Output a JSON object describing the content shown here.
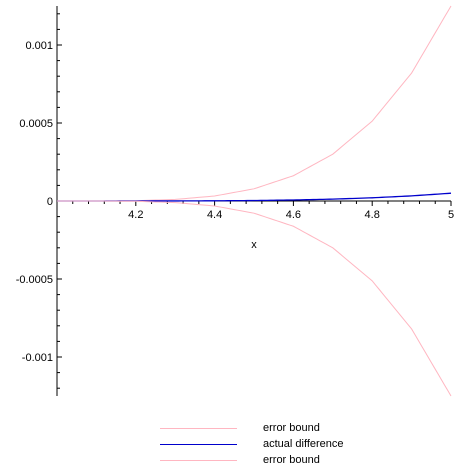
{
  "chart_data": {
    "type": "line",
    "title": "",
    "xlabel": "x",
    "ylabel": "",
    "xlim": [
      4.0,
      5.0
    ],
    "ylim": [
      -0.00125,
      0.00125
    ],
    "x_ticks": [
      4.2,
      4.4,
      4.6,
      4.8,
      5
    ],
    "x_tick_labels": [
      "4.2",
      "4.4",
      "4.6",
      "4.8",
      "5"
    ],
    "y_ticks": [
      0.001,
      0.0005,
      0,
      -0.0005,
      -0.001
    ],
    "y_tick_labels": [
      "0.001",
      "0.0005",
      "0",
      "-0.0005",
      "-0.001"
    ],
    "grid": false,
    "legend_position": "bottom",
    "series": [
      {
        "name": "error bound",
        "color": "#ffb6c1",
        "x": [
          4.0,
          4.1,
          4.2,
          4.3,
          4.4,
          4.5,
          4.6,
          4.7,
          4.8,
          4.9,
          5.0
        ],
        "y": [
          0,
          1e-07,
          2e-06,
          1.01e-05,
          3.2e-05,
          7.81e-05,
          0.000162,
          0.0003001,
          0.000512,
          0.0008201,
          0.00125
        ]
      },
      {
        "name": "actual difference",
        "color": "#0000cc",
        "x": [
          4.0,
          4.1,
          4.2,
          4.3,
          4.4,
          4.5,
          4.6,
          4.7,
          4.8,
          4.9,
          5.0
        ],
        "y": [
          0,
          0.0,
          1e-07,
          4e-07,
          1.3e-06,
          3.1e-06,
          6.5e-06,
          1.2e-05,
          2.05e-05,
          3.28e-05,
          5e-05
        ]
      },
      {
        "name": "error bound",
        "color": "#ffb6c1",
        "x": [
          4.0,
          4.1,
          4.2,
          4.3,
          4.4,
          4.5,
          4.6,
          4.7,
          4.8,
          4.9,
          5.0
        ],
        "y": [
          0,
          -1e-07,
          -2e-06,
          -1.01e-05,
          -3.2e-05,
          -7.81e-05,
          -0.000162,
          -0.0003001,
          -0.000512,
          -0.0008201,
          -0.00125
        ]
      }
    ]
  }
}
